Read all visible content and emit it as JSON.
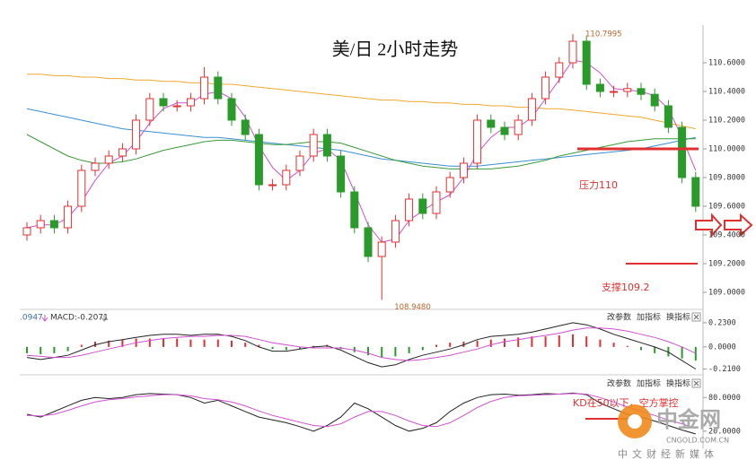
{
  "chart_data": [
    {
      "type": "candlestick",
      "title": "美/日 2小时走势",
      "open": [
        109.4,
        109.45,
        109.5,
        109.45,
        109.6,
        109.85,
        109.9,
        109.95,
        110.0,
        110.2,
        110.35,
        110.3,
        110.3,
        110.35,
        110.5,
        110.35,
        110.2,
        110.1,
        109.75,
        109.75,
        109.85,
        109.95,
        110.1,
        109.95,
        109.7,
        109.45,
        109.25,
        109.35,
        109.5,
        109.65,
        109.55,
        109.7,
        109.8,
        109.9,
        110.2,
        110.15,
        110.1,
        110.2,
        110.35,
        110.5,
        110.6,
        110.75,
        110.45,
        110.4,
        110.4,
        110.42,
        110.38,
        110.3,
        110.15,
        109.8
      ],
      "close": [
        109.45,
        109.5,
        109.45,
        109.6,
        109.85,
        109.9,
        109.95,
        110.0,
        110.2,
        110.35,
        110.3,
        110.3,
        110.35,
        110.5,
        110.35,
        110.2,
        110.1,
        109.75,
        109.75,
        109.85,
        109.95,
        110.1,
        109.95,
        109.7,
        109.45,
        109.25,
        109.35,
        109.5,
        109.65,
        109.55,
        109.7,
        109.8,
        109.9,
        110.2,
        110.15,
        110.1,
        110.2,
        110.35,
        110.5,
        110.6,
        110.75,
        110.45,
        110.4,
        110.4,
        110.42,
        110.38,
        110.3,
        110.15,
        109.8,
        109.6
      ],
      "high": [
        109.49,
        109.54,
        109.54,
        109.64,
        109.89,
        109.94,
        109.99,
        110.04,
        110.24,
        110.39,
        110.39,
        110.34,
        110.39,
        110.57,
        110.54,
        110.39,
        110.24,
        110.14,
        109.79,
        109.89,
        109.99,
        110.14,
        110.14,
        109.99,
        109.74,
        109.49,
        109.39,
        109.54,
        109.69,
        109.69,
        109.74,
        109.84,
        109.94,
        110.24,
        110.24,
        110.19,
        110.24,
        110.39,
        110.54,
        110.64,
        110.7995,
        110.79,
        110.49,
        110.44,
        110.46,
        110.46,
        110.42,
        110.34,
        110.19,
        109.84
      ],
      "low": [
        109.36,
        109.41,
        109.41,
        109.41,
        109.56,
        109.81,
        109.86,
        109.91,
        109.96,
        110.16,
        110.26,
        110.26,
        110.26,
        110.31,
        110.31,
        110.16,
        110.06,
        109.71,
        109.71,
        109.71,
        109.81,
        109.91,
        109.91,
        109.66,
        109.41,
        109.21,
        108.948,
        109.31,
        109.46,
        109.51,
        109.51,
        109.66,
        109.76,
        109.86,
        110.11,
        110.06,
        110.06,
        110.16,
        110.31,
        110.46,
        110.56,
        110.41,
        110.36,
        110.36,
        110.36,
        110.34,
        110.26,
        110.11,
        109.76,
        109.56
      ],
      "up_color": "#e03030",
      "down_color": "#2a9a2a",
      "series": [
        {
          "color": "#f0a830",
          "values": [
            110.52,
            110.52,
            110.51,
            110.51,
            110.5,
            110.5,
            110.49,
            110.49,
            110.48,
            110.48,
            110.47,
            110.47,
            110.46,
            110.46,
            110.45,
            110.45,
            110.44,
            110.43,
            110.42,
            110.41,
            110.4,
            110.39,
            110.38,
            110.37,
            110.36,
            110.35,
            110.34,
            110.34,
            110.33,
            110.33,
            110.32,
            110.32,
            110.31,
            110.31,
            110.3,
            110.3,
            110.29,
            110.29,
            110.28,
            110.28,
            110.27,
            110.26,
            110.25,
            110.24,
            110.23,
            110.22,
            110.2,
            110.18,
            110.16,
            110.14
          ]
        },
        {
          "color": "#3a8fd0",
          "values": [
            110.28,
            110.26,
            110.24,
            110.22,
            110.2,
            110.18,
            110.16,
            110.14,
            110.13,
            110.12,
            110.11,
            110.1,
            110.09,
            110.08,
            110.08,
            110.07,
            110.06,
            110.05,
            110.04,
            110.03,
            110.02,
            110.01,
            110.0,
            109.99,
            109.97,
            109.95,
            109.93,
            109.92,
            109.91,
            109.9,
            109.89,
            109.88,
            109.88,
            109.88,
            109.89,
            109.9,
            109.91,
            109.92,
            109.93,
            109.94,
            109.95,
            109.96,
            109.97,
            109.98,
            109.99,
            110.0,
            110.02,
            110.04,
            110.06,
            110.08
          ]
        },
        {
          "color": "#3a9a3a",
          "values": [
            110.1,
            110.05,
            110.0,
            109.95,
            109.92,
            109.9,
            109.9,
            109.91,
            109.93,
            109.96,
            109.99,
            110.01,
            110.03,
            110.05,
            110.06,
            110.06,
            110.05,
            110.04,
            110.03,
            110.03,
            110.04,
            110.05,
            110.05,
            110.04,
            110.01,
            109.98,
            109.95,
            109.92,
            109.9,
            109.88,
            109.87,
            109.86,
            109.86,
            109.86,
            109.86,
            109.87,
            109.88,
            109.9,
            109.92,
            109.95,
            109.97,
            109.99,
            110.01,
            110.03,
            110.05,
            110.06,
            110.07,
            110.07,
            110.07,
            110.07
          ]
        },
        {
          "color": "#d050d0",
          "values": [
            109.45,
            109.47,
            109.47,
            109.52,
            109.63,
            109.78,
            109.9,
            109.95,
            110.05,
            110.18,
            110.28,
            110.32,
            110.32,
            110.38,
            110.4,
            110.35,
            110.22,
            110.02,
            109.87,
            109.78,
            109.85,
            109.97,
            110.0,
            109.92,
            109.7,
            109.47,
            109.35,
            109.37,
            109.5,
            109.57,
            109.63,
            109.68,
            109.8,
            109.97,
            110.08,
            110.15,
            110.15,
            110.22,
            110.35,
            110.48,
            110.62,
            110.6,
            110.53,
            110.42,
            110.41,
            110.4,
            110.37,
            110.28,
            110.08,
            109.85
          ]
        }
      ],
      "high_label": "110.7995",
      "low_label": "108.9480",
      "resistance": 110,
      "support": 109.2,
      "level_color": "#e03030",
      "resistance_label": "压力110",
      "support_label": "支撑109.2",
      "ylim": [
        108.9,
        110.85
      ],
      "yticks": [
        {
          "value": 109.0,
          "label": "109.0000"
        },
        {
          "value": 109.2,
          "label": "109.2000"
        },
        {
          "value": 109.4,
          "label": "109.4000"
        },
        {
          "value": 109.6,
          "label": "109.6000"
        },
        {
          "value": 109.8,
          "label": "109.8000"
        },
        {
          "value": 110.0,
          "label": "110.0000"
        },
        {
          "value": 110.2,
          "label": "110.2000"
        },
        {
          "value": 110.4,
          "label": "110.4000"
        },
        {
          "value": 110.6,
          "label": "110.6000"
        }
      ]
    },
    {
      "type": "macd",
      "prev_label": ".0947",
      "macd_label": "MACD:-0.2071",
      "toolbar": [
        "改参数",
        "加指标",
        "换指标"
      ],
      "up_color": "#e03030",
      "down_color": "#2a9a2a",
      "hist": [
        -0.06,
        -0.07,
        -0.06,
        -0.04,
        0.02,
        0.05,
        0.06,
        0.07,
        0.08,
        0.08,
        0.08,
        0.08,
        0.07,
        0.07,
        0.07,
        0.06,
        0.04,
        0.02,
        -0.02,
        -0.03,
        -0.02,
        0.01,
        0.02,
        -0.02,
        -0.05,
        -0.08,
        -0.1,
        -0.09,
        -0.06,
        -0.03,
        0.02,
        0.04,
        0.05,
        0.06,
        0.07,
        0.08,
        0.09,
        0.1,
        0.1,
        0.11,
        0.12,
        0.1,
        0.07,
        0.04,
        0.01,
        -0.03,
        -0.06,
        -0.09,
        -0.11,
        -0.13
      ],
      "series": [
        {
          "color": "#222222",
          "values": [
            -0.1,
            -0.12,
            -0.1,
            -0.08,
            -0.03,
            0.02,
            0.05,
            0.07,
            0.09,
            0.11,
            0.12,
            0.12,
            0.11,
            0.12,
            0.12,
            0.1,
            0.06,
            0.0,
            -0.04,
            -0.04,
            -0.02,
            0.0,
            0.01,
            -0.03,
            -0.09,
            -0.15,
            -0.19,
            -0.17,
            -0.12,
            -0.08,
            -0.05,
            -0.02,
            0.02,
            0.07,
            0.1,
            0.11,
            0.12,
            0.14,
            0.17,
            0.2,
            0.23,
            0.21,
            0.17,
            0.12,
            0.08,
            0.04,
            0.0,
            -0.05,
            -0.13,
            -0.21
          ]
        },
        {
          "color": "#d050d0",
          "values": [
            -0.08,
            -0.09,
            -0.1,
            -0.1,
            -0.08,
            -0.05,
            -0.02,
            0.01,
            0.04,
            0.06,
            0.08,
            0.09,
            0.1,
            0.1,
            0.11,
            0.11,
            0.1,
            0.07,
            0.04,
            0.02,
            0.0,
            -0.01,
            -0.01,
            -0.01,
            -0.03,
            -0.06,
            -0.1,
            -0.12,
            -0.13,
            -0.12,
            -0.1,
            -0.08,
            -0.05,
            -0.02,
            0.02,
            0.05,
            0.07,
            0.09,
            0.11,
            0.13,
            0.16,
            0.18,
            0.18,
            0.17,
            0.15,
            0.12,
            0.09,
            0.05,
            0.0,
            -0.06
          ]
        }
      ],
      "ylim": [
        -0.24,
        0.34
      ],
      "yticks": [
        {
          "value": 0.23,
          "label": "0.2300"
        },
        {
          "value": 0,
          "label": "0.0000"
        },
        {
          "value": -0.21,
          "label": "-0.2100"
        }
      ]
    },
    {
      "type": "line",
      "toolbar": [
        "改参数",
        "加指标",
        "换指标"
      ],
      "annotation": "KD在50以下，空方掌控",
      "series": [
        {
          "color": "#222222",
          "values": [
            50,
            45,
            55,
            65,
            75,
            80,
            78,
            80,
            85,
            87,
            86,
            85,
            80,
            70,
            75,
            65,
            55,
            45,
            40,
            35,
            28,
            20,
            30,
            45,
            70,
            60,
            45,
            30,
            20,
            25,
            35,
            55,
            70,
            80,
            85,
            86,
            84,
            85,
            87,
            86,
            88,
            85,
            70,
            60,
            50,
            45,
            38,
            30,
            22,
            15
          ]
        },
        {
          "color": "#d050d0",
          "values": [
            48,
            47,
            50,
            57,
            65,
            72,
            76,
            78,
            81,
            83,
            85,
            85,
            83,
            78,
            76,
            72,
            65,
            56,
            48,
            42,
            36,
            30,
            28,
            33,
            45,
            55,
            55,
            48,
            38,
            30,
            28,
            35,
            48,
            62,
            73,
            80,
            83,
            84,
            85,
            86,
            87,
            86,
            80,
            72,
            63,
            55,
            48,
            40,
            33,
            25
          ]
        }
      ],
      "ylim": [
        2,
        98
      ],
      "yticks": [
        {
          "value": 80,
          "label": "80.0000"
        },
        {
          "value": 20,
          "label": "20.0000"
        }
      ]
    }
  ],
  "watermark": {
    "name": "中金网",
    "url": "CNGOLD.COM.CN",
    "slogan": "中文财经新媒体"
  }
}
